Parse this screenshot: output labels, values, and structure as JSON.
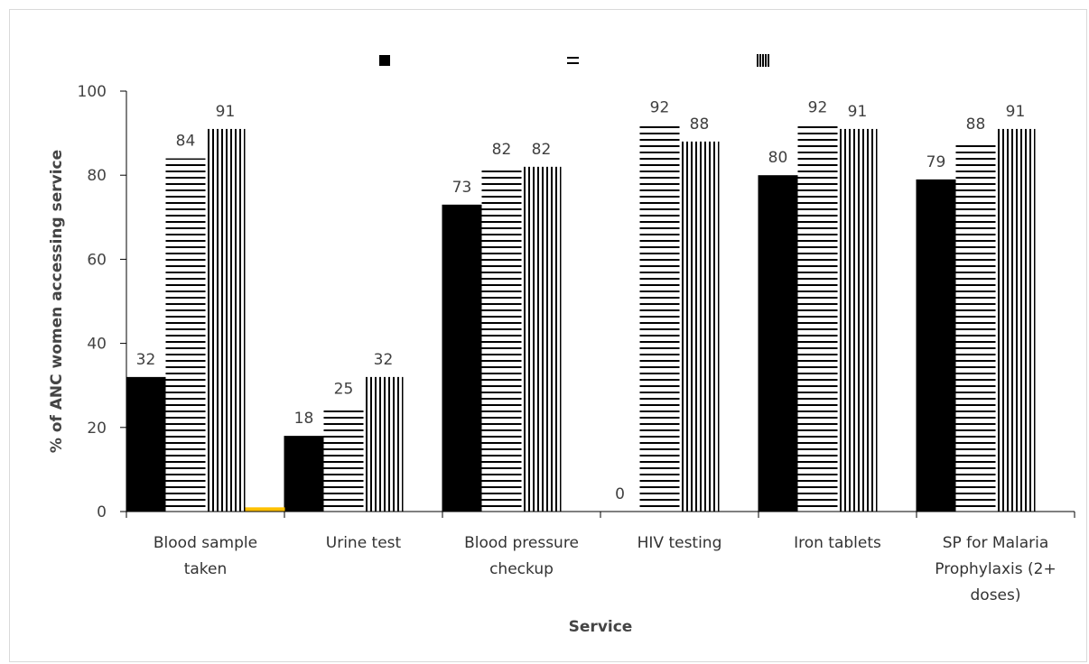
{
  "chart_data": {
    "type": "bar",
    "title": "",
    "xlabel": "Service",
    "ylabel": "% of ANC women accessing service",
    "ylim": [
      0,
      100
    ],
    "yticks": [
      0,
      20,
      40,
      60,
      80,
      100
    ],
    "grid": false,
    "legend": "top",
    "categories": [
      [
        "Blood sample",
        "taken"
      ],
      [
        "Urine test"
      ],
      [
        "Blood pressure",
        "checkup"
      ],
      [
        "HIV testing"
      ],
      [
        "Iron tablets"
      ],
      [
        "SP for Malaria",
        "Prophylaxis (2+",
        "doses)"
      ]
    ],
    "series": [
      {
        "pattern": "solid",
        "color": "#000000",
        "values": [
          32,
          18,
          73,
          0,
          80,
          79
        ],
        "labels": [
          "32",
          "18",
          "73",
          "0",
          "80",
          "79"
        ]
      },
      {
        "pattern": "horizontal-stripes",
        "color": "#000000",
        "values": [
          84,
          25,
          82,
          92,
          92,
          88
        ],
        "labels": [
          "84",
          "25",
          "82",
          "92",
          "92",
          "88"
        ]
      },
      {
        "pattern": "vertical-stripes",
        "color": "#000000",
        "values": [
          91,
          32,
          82,
          88,
          91,
          91
        ],
        "labels": [
          "91",
          "32",
          "82",
          "88",
          "91",
          "91"
        ]
      },
      {
        "pattern": "solid",
        "color": "#ffc000",
        "values": [
          1,
          null,
          null,
          null,
          null,
          null
        ],
        "labels": []
      }
    ]
  }
}
